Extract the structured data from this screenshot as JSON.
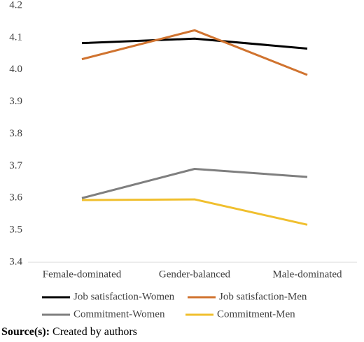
{
  "chart_data": {
    "type": "line",
    "categories": [
      "Female-dominated",
      "Gender-balanced",
      "Male-dominated"
    ],
    "series": [
      {
        "name": "Job satisfaction-Women",
        "color": "#000000",
        "values": [
          4.083,
          4.097,
          4.066
        ]
      },
      {
        "name": "Job satisfaction-Men",
        "color": "#d0732f",
        "values": [
          4.033,
          4.123,
          3.984
        ]
      },
      {
        "name": "Commitment-Women",
        "color": "#7f7f7f",
        "values": [
          3.6,
          3.691,
          3.666
        ]
      },
      {
        "name": "Commitment-Men",
        "color": "#f0bf2e",
        "values": [
          3.594,
          3.596,
          3.517
        ]
      }
    ],
    "ylim": [
      3.4,
      4.2
    ],
    "yticks": [
      3.4,
      3.5,
      3.6,
      3.7,
      3.8,
      3.9,
      {
        "value": 4,
        "label": "4.0"
      },
      4.1,
      4.2
    ],
    "grid": false,
    "legend": "bottom",
    "source_label": "Source(s):",
    "source_text": "Created by authors"
  }
}
